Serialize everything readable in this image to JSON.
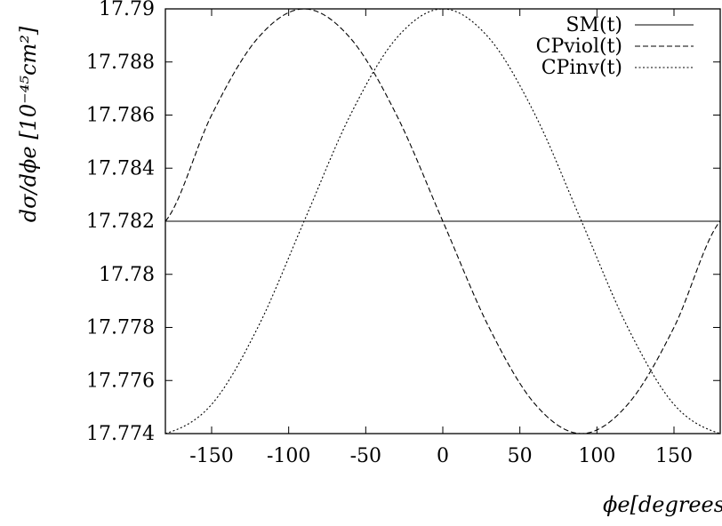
{
  "chart_data": {
    "type": "line",
    "title": "",
    "xlabel": "ϕe[degrees]",
    "ylabel": "dσ/dϕe [10⁻⁴⁵cm²]",
    "xlim": [
      -180,
      180
    ],
    "ylim": [
      17.774,
      17.79
    ],
    "grid": false,
    "legend_position": "top-right",
    "x_ticks": [
      -150,
      -100,
      -50,
      0,
      50,
      100,
      150
    ],
    "x_tick_labels": [
      "-150",
      "-100",
      "-50",
      "0",
      "50",
      "100",
      "150"
    ],
    "y_ticks": [
      17.774,
      17.776,
      17.778,
      17.78,
      17.782,
      17.784,
      17.786,
      17.788,
      17.79
    ],
    "y_tick_labels": [
      "17.774",
      "17.776",
      "17.778",
      "17.78",
      "17.782",
      "17.784",
      "17.786",
      "17.788",
      "17.79"
    ],
    "x": [
      -180,
      -150,
      -120,
      -90,
      -60,
      -30,
      0,
      30,
      60,
      90,
      120,
      150,
      180
    ],
    "series": [
      {
        "name": "SM(t)",
        "style": "solid",
        "values": [
          17.782,
          17.782,
          17.782,
          17.782,
          17.782,
          17.782,
          17.782,
          17.782,
          17.782,
          17.782,
          17.782,
          17.782,
          17.782
        ]
      },
      {
        "name": "CPviol(t)",
        "style": "dashed",
        "values": [
          17.782,
          17.786,
          17.7889,
          17.79,
          17.7889,
          17.786,
          17.782,
          17.778,
          17.7751,
          17.774,
          17.7751,
          17.778,
          17.782
        ]
      },
      {
        "name": "CPinv(t)",
        "style": "dotted",
        "values": [
          17.774,
          17.7751,
          17.778,
          17.782,
          17.786,
          17.7889,
          17.79,
          17.7889,
          17.786,
          17.782,
          17.778,
          17.7751,
          17.774
        ]
      }
    ]
  }
}
